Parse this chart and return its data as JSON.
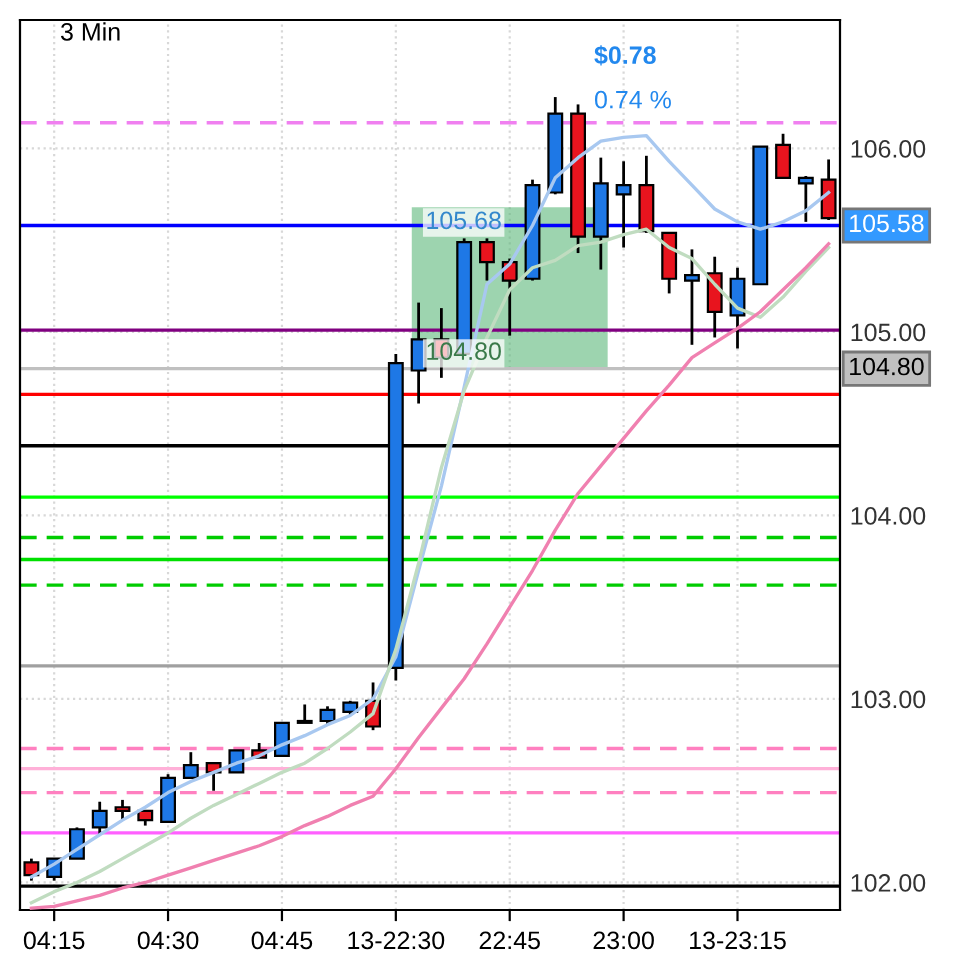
{
  "chart_data": {
    "type": "candlestick",
    "title": "3 Min",
    "categories": [
      null,
      "04:15",
      null,
      null,
      null,
      null,
      "04:30",
      null,
      null,
      null,
      null,
      "04:45",
      null,
      null,
      null,
      null,
      "13-22:30",
      null,
      null,
      null,
      null,
      "22:45",
      null,
      null,
      null,
      null,
      "23:00",
      null,
      null,
      null,
      null,
      "13-23:15",
      null,
      null,
      null,
      null
    ],
    "ohlc": [
      [
        102.11,
        102.13,
        102.01,
        102.04
      ],
      [
        102.03,
        102.13,
        102.01,
        102.13
      ],
      [
        102.13,
        102.3,
        102.13,
        102.29
      ],
      [
        102.3,
        102.44,
        102.26,
        102.39
      ],
      [
        102.41,
        102.45,
        102.34,
        102.39
      ],
      [
        102.39,
        102.39,
        102.31,
        102.34
      ],
      [
        102.33,
        102.59,
        102.33,
        102.57
      ],
      [
        102.57,
        102.71,
        102.57,
        102.64
      ],
      [
        102.65,
        102.65,
        102.5,
        102.6
      ],
      [
        102.6,
        102.72,
        102.6,
        102.72
      ],
      [
        102.72,
        102.76,
        102.68,
        102.68
      ],
      [
        102.69,
        102.87,
        102.69,
        102.87
      ],
      [
        102.88,
        102.97,
        102.87,
        102.87
      ],
      [
        102.88,
        102.96,
        102.86,
        102.94
      ],
      [
        102.93,
        102.99,
        102.91,
        102.98
      ],
      [
        102.99,
        103.09,
        102.83,
        102.85
      ],
      [
        103.17,
        104.88,
        103.1,
        104.83
      ],
      [
        104.79,
        105.16,
        104.61,
        104.96
      ],
      [
        104.96,
        105.13,
        104.75,
        104.86
      ],
      [
        104.88,
        105.51,
        104.88,
        105.49
      ],
      [
        105.49,
        105.51,
        105.28,
        105.38
      ],
      [
        105.38,
        105.4,
        104.98,
        105.28
      ],
      [
        105.29,
        105.83,
        105.28,
        105.8
      ],
      [
        105.76,
        106.28,
        105.75,
        106.19
      ],
      [
        106.19,
        106.24,
        105.43,
        105.52
      ],
      [
        105.52,
        105.95,
        105.34,
        105.81
      ],
      [
        105.75,
        105.93,
        105.46,
        105.8
      ],
      [
        105.8,
        105.96,
        105.54,
        105.55
      ],
      [
        105.54,
        105.54,
        105.21,
        105.29
      ],
      [
        105.28,
        105.45,
        104.93,
        105.31
      ],
      [
        105.32,
        105.41,
        104.97,
        105.11
      ],
      [
        105.09,
        105.35,
        104.91,
        105.29
      ],
      [
        105.26,
        106.01,
        105.26,
        106.01
      ],
      [
        106.02,
        106.08,
        105.84,
        105.84
      ],
      [
        105.81,
        105.85,
        105.6,
        105.84
      ],
      [
        105.83,
        105.94,
        105.61,
        105.62
      ]
    ],
    "colors": [
      "#e8141e",
      "#1e78e6",
      "#1e78e6",
      "#1e78e6",
      "#e8141e",
      "#e8141e",
      "#1e78e6",
      "#1e78e6",
      "#e8141e",
      "#1e78e6",
      "#e8141e",
      "#1e78e6",
      "#e8141e",
      "#1e78e6",
      "#1e78e6",
      "#e8141e",
      "#1e78e6",
      "#1e78e6",
      "#e8141e",
      "#1e78e6",
      "#e8141e",
      "#e8141e",
      "#1e78e6",
      "#1e78e6",
      "#e8141e",
      "#1e78e6",
      "#1e78e6",
      "#e8141e",
      "#e8141e",
      "#1e78e6",
      "#e8141e",
      "#1e78e6",
      "#1e78e6",
      "#e8141e",
      "#1e78e6",
      "#e8141e"
    ],
    "bands": [
      {
        "axis": "y",
        "from": 104.8,
        "to": 105.68,
        "color": "#5cb87a"
      }
    ],
    "series": [
      {
        "type": "line",
        "color": "#a8c8f0",
        "values": [
          102.03,
          102.1,
          102.18,
          102.26,
          102.34,
          102.41,
          102.49,
          102.55,
          102.6,
          102.65,
          102.69,
          102.75,
          102.8,
          102.86,
          102.91,
          103.0,
          103.23,
          103.7,
          104.16,
          104.7,
          105.26,
          105.37,
          105.58,
          105.84,
          105.95,
          106.04,
          106.06,
          106.07,
          105.93,
          105.8,
          105.67,
          105.6,
          105.56,
          105.6,
          105.66,
          105.76
        ]
      },
      {
        "type": "line",
        "color": "#c0dcc0",
        "values": [
          101.89,
          101.95,
          102.0,
          102.06,
          102.13,
          102.2,
          102.27,
          102.35,
          102.42,
          102.48,
          102.54,
          102.6,
          102.65,
          102.73,
          102.82,
          102.92,
          103.27,
          103.74,
          104.26,
          104.68,
          104.97,
          105.23,
          105.35,
          105.39,
          105.47,
          105.49,
          105.53,
          105.56,
          105.46,
          105.4,
          105.26,
          105.13,
          105.08,
          105.19,
          105.33,
          105.46
        ]
      },
      {
        "type": "line",
        "color": "#f080b0",
        "values": [
          101.86,
          101.87,
          101.9,
          101.93,
          101.97,
          102.0,
          102.04,
          102.08,
          102.12,
          102.16,
          102.2,
          102.25,
          102.31,
          102.36,
          102.42,
          102.47,
          102.62,
          102.79,
          102.95,
          103.11,
          103.3,
          103.5,
          103.7,
          103.92,
          104.12,
          104.27,
          104.42,
          104.57,
          104.71,
          104.86,
          104.94,
          105.02,
          105.11,
          105.23,
          105.35,
          105.48
        ]
      }
    ],
    "ylim": [
      101.85,
      106.7
    ],
    "yticks": [
      {
        "value": 102,
        "label": "102.00"
      },
      {
        "value": 103,
        "label": "103.00"
      },
      {
        "value": 104,
        "label": "104.00"
      },
      {
        "value": 105,
        "label": "105.00"
      },
      {
        "value": 106,
        "label": "106.00"
      }
    ],
    "ref_lines": [
      {
        "axis": "y",
        "value": 106.14,
        "color": "#f080f0",
        "line_style": "dashed"
      },
      {
        "axis": "y",
        "value": 105.58,
        "color": "#0000ff",
        "label": "105.58"
      },
      {
        "axis": "y",
        "value": 105.01,
        "color": "#800080"
      },
      {
        "axis": "y",
        "value": 104.8,
        "color": "#c0c0c0",
        "label": "104.80"
      },
      {
        "axis": "y",
        "value": 104.66,
        "color": "#ff0000"
      },
      {
        "axis": "y",
        "value": 104.38,
        "color": "#000000"
      },
      {
        "axis": "y",
        "value": 104.1,
        "color": "#00ff00"
      },
      {
        "axis": "y",
        "value": 103.88,
        "color": "#00cc00",
        "line_style": "dashed"
      },
      {
        "axis": "y",
        "value": 103.76,
        "color": "#00e000"
      },
      {
        "axis": "y",
        "value": 103.62,
        "color": "#00cc00",
        "line_style": "dashed"
      },
      {
        "axis": "y",
        "value": 103.18,
        "color": "#a0a0a0"
      },
      {
        "axis": "y",
        "value": 102.73,
        "color": "#ff80c0",
        "line_style": "dashed"
      },
      {
        "axis": "y",
        "value": 102.62,
        "color": "#ffb0d8"
      },
      {
        "axis": "y",
        "value": 102.49,
        "color": "#ff80c0",
        "line_style": "dashed"
      },
      {
        "axis": "y",
        "value": 102.27,
        "color": "#ff60ff"
      },
      {
        "axis": "y",
        "value": 101.98,
        "color": "#000000"
      }
    ],
    "annotations": [
      "105.68",
      "104.80",
      "$0.78",
      "0.74 %"
    ],
    "grid": true
  }
}
